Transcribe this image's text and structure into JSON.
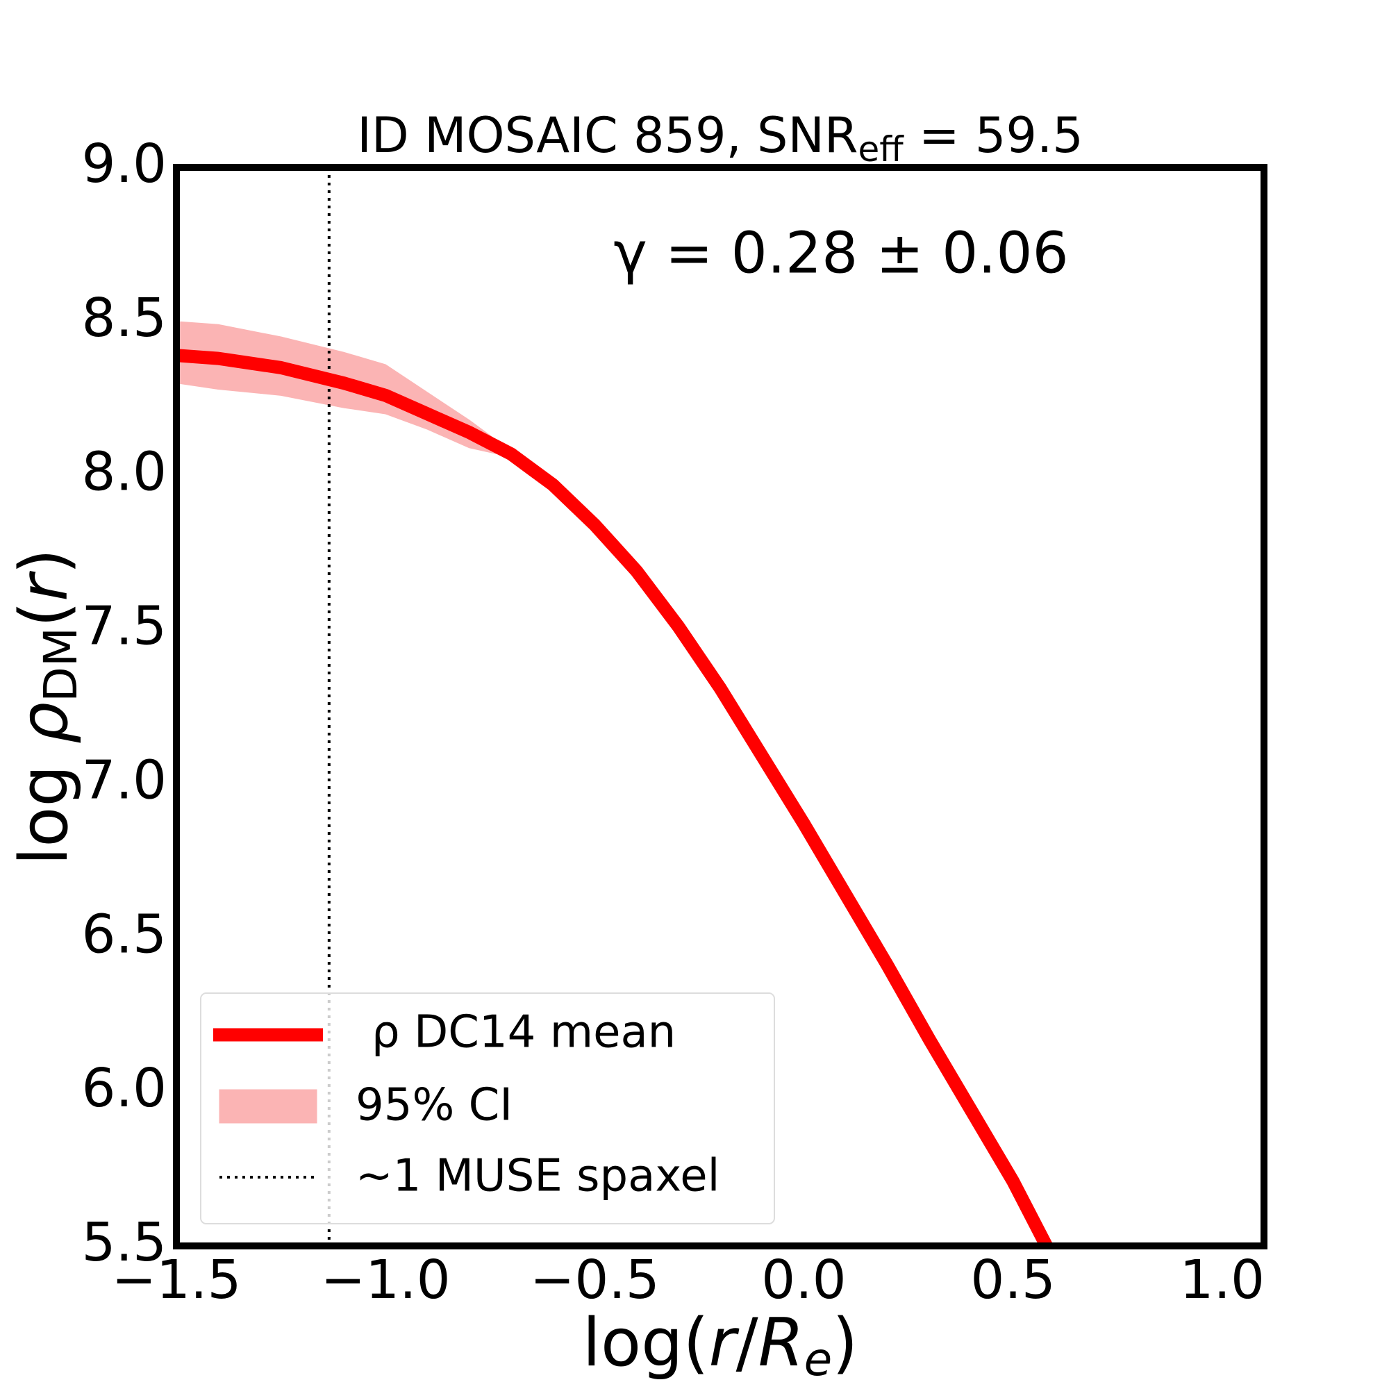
{
  "chart_data": {
    "type": "line",
    "title": [
      "ID MOSAIC 859, SNR",
      "eff",
      " = 59.5"
    ],
    "annotation": "γ = 0.28 ± 0.06",
    "xlabel": [
      "log(",
      "r",
      "/",
      "R",
      "e",
      ")"
    ],
    "ylabel": [
      "log ",
      "ρ",
      "DM",
      "(",
      "r",
      ")"
    ],
    "x": [
      -1.5,
      -1.4,
      -1.25,
      -1.1,
      -1.0,
      -0.9,
      -0.8,
      -0.7,
      -0.6,
      -0.5,
      -0.4,
      -0.3,
      -0.2,
      -0.1,
      0.0,
      0.1,
      0.2,
      0.3,
      0.4,
      0.5,
      0.58
    ],
    "series": [
      {
        "name": "ρ DC14 mean",
        "color": "#ff0000",
        "values": [
          8.39,
          8.38,
          8.35,
          8.3,
          8.26,
          8.2,
          8.14,
          8.07,
          7.97,
          7.84,
          7.69,
          7.51,
          7.31,
          7.09,
          6.87,
          6.64,
          6.41,
          6.17,
          5.94,
          5.71,
          5.5
        ]
      }
    ],
    "band": {
      "name": "95% CI",
      "color": "#fbb4b4",
      "lower": [
        8.3,
        8.28,
        8.26,
        8.22,
        8.2,
        8.15,
        8.09,
        8.06,
        7.96,
        7.83,
        7.68,
        7.5,
        7.3,
        7.08,
        6.85,
        6.62,
        6.38,
        6.14,
        5.91,
        5.68,
        5.48
      ],
      "upper": [
        8.5,
        8.49,
        8.45,
        8.4,
        8.36,
        8.27,
        8.18,
        8.08,
        7.98,
        7.85,
        7.7,
        7.52,
        7.32,
        7.1,
        6.88,
        6.65,
        6.42,
        6.18,
        5.95,
        5.72,
        5.51
      ]
    },
    "vline": {
      "x": -1.135,
      "name": "~1 MUSE spaxel",
      "color": "#000000"
    },
    "xlim": [
      -1.5,
      1.1
    ],
    "ylim": [
      5.5,
      9.0
    ],
    "xticks": [
      {
        "value": -1.5,
        "label": "−1.5"
      },
      {
        "value": -1.0,
        "label": "−1.0"
      },
      {
        "value": -0.5,
        "label": "−0.5"
      },
      {
        "value": 0,
        "label": "0.0"
      },
      0.5,
      {
        "value": 1,
        "label": "1.0"
      }
    ],
    "yticks": [
      5.5,
      {
        "value": 6,
        "label": "6.0"
      },
      6.5,
      {
        "value": 7,
        "label": "7.0"
      },
      7.5,
      {
        "value": 8,
        "label": "8.0"
      },
      8.5,
      {
        "value": 9,
        "label": "9.0"
      }
    ],
    "grid": false,
    "legend": "lower left"
  }
}
